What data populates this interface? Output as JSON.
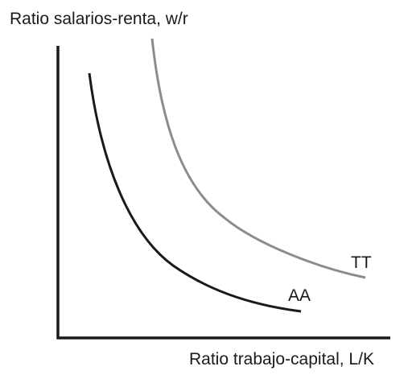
{
  "diagram": {
    "y_axis_label": "Ratio salarios-renta, w/r",
    "x_axis_label": "Ratio trabajo-capital, L/K",
    "curves": [
      {
        "id": "AA",
        "label": "AA",
        "color": "#1a1a1a"
      },
      {
        "id": "TT",
        "label": "TT",
        "color": "#8c8c8c"
      }
    ],
    "axis_color": "#1a1a1a"
  }
}
